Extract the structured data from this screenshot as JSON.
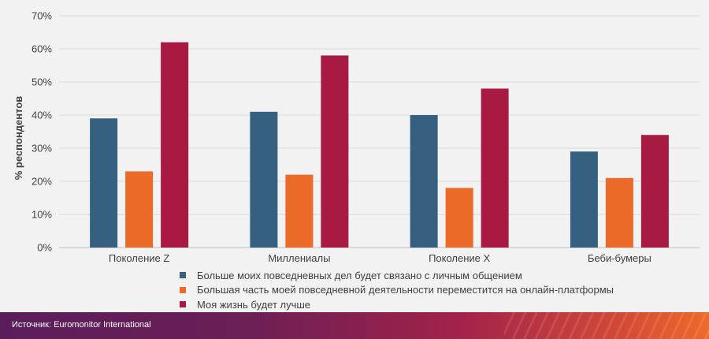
{
  "chart_data": {
    "type": "bar",
    "categories": [
      "Поколение Z",
      "Миллениалы",
      "Поколение X",
      "Беби-бумеры"
    ],
    "series": [
      {
        "name": "Больше моих повседневных дел будет связано с личным общением",
        "color": "#35607f",
        "values": [
          39,
          41,
          40,
          29
        ]
      },
      {
        "name": "Большая часть моей повседневной деятельности переместится на онлайн-платформы",
        "color": "#ec6a28",
        "values": [
          23,
          22,
          18,
          21
        ]
      },
      {
        "name": "Моя жизнь будет лучше",
        "color": "#a81a42",
        "values": [
          62,
          58,
          48,
          34
        ]
      }
    ],
    "ylabel": "% респондентов",
    "ylim": [
      0,
      70
    ],
    "yticks": [
      0,
      10,
      20,
      30,
      40,
      50,
      60,
      70
    ],
    "ytick_format": "%",
    "grid": true,
    "legend_position": "bottom"
  },
  "footer": {
    "source": "Источник: Euromonitor International"
  }
}
